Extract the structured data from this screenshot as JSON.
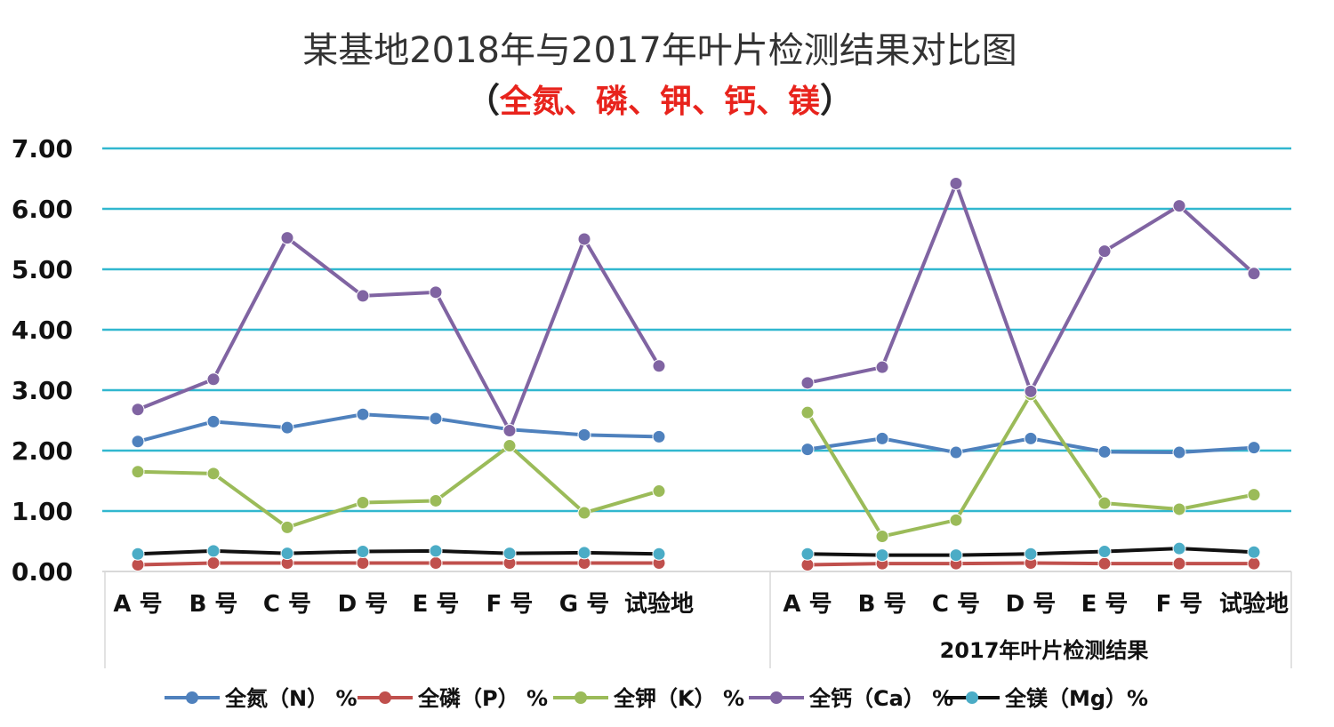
{
  "chart_data": {
    "type": "line",
    "title": "某基地2018年与2017年叶片检测结果对比图",
    "subtitle": {
      "open": "（",
      "text": "全氮、磷、钾、钙、镁",
      "close": "）"
    },
    "xlabel": "",
    "ylabel": "",
    "ylim": [
      0,
      7
    ],
    "yticks": [
      "0.00",
      "1.00",
      "2.00",
      "3.00",
      "4.00",
      "5.00",
      "6.00",
      "7.00"
    ],
    "grid": true,
    "legend_position": "bottom",
    "groups": [
      {
        "label": "",
        "categories": [
          "A 号",
          "B 号",
          "C 号",
          "D 号",
          "E 号",
          "F 号",
          "G 号",
          "试验地"
        ]
      },
      {
        "label": "2017年叶片检测结果",
        "categories": [
          "A 号",
          "B 号",
          "C 号",
          "D 号",
          "E 号",
          "F 号",
          "试验地"
        ]
      }
    ],
    "series": [
      {
        "name": "全氮（N）%",
        "color": "#4f81bd",
        "line_color": "#4f81bd",
        "values": [
          [
            2.15,
            2.48,
            2.38,
            2.6,
            2.53,
            2.35,
            2.26,
            2.23
          ],
          [
            2.02,
            2.2,
            1.97,
            2.2,
            1.98,
            1.97,
            2.05
          ]
        ]
      },
      {
        "name": "全磷（P）%",
        "color": "#c0504d",
        "line_color": "#c0504d",
        "values": [
          [
            0.11,
            0.14,
            0.14,
            0.14,
            0.14,
            0.14,
            0.14,
            0.14
          ],
          [
            0.11,
            0.13,
            0.13,
            0.14,
            0.13,
            0.13,
            0.13
          ]
        ]
      },
      {
        "name": "全钾（K）%",
        "color": "#9bbb59",
        "line_color": "#9bbb59",
        "values": [
          [
            1.65,
            1.62,
            0.73,
            1.14,
            1.17,
            2.08,
            0.97,
            1.33
          ],
          [
            2.63,
            0.58,
            0.85,
            2.93,
            1.13,
            1.03,
            1.27
          ]
        ]
      },
      {
        "name": "全钙（Ca）%",
        "color": "#8064a2",
        "line_color": "#8064a2",
        "values": [
          [
            2.68,
            3.18,
            5.52,
            4.56,
            4.62,
            2.33,
            5.5,
            3.4
          ],
          [
            3.12,
            3.38,
            6.42,
            2.98,
            5.3,
            6.05,
            4.93
          ]
        ]
      },
      {
        "name": "全镁（Mg）%",
        "color": "#4bacc6",
        "line_color": "#111111",
        "values": [
          [
            0.29,
            0.34,
            0.3,
            0.33,
            0.34,
            0.3,
            0.31,
            0.29
          ],
          [
            0.29,
            0.27,
            0.27,
            0.29,
            0.33,
            0.38,
            0.32
          ]
        ]
      }
    ],
    "legend": [
      {
        "name": "全氮（N） %",
        "color": "#4f81bd",
        "line_color": "#4f81bd"
      },
      {
        "name": "全磷（P） %",
        "color": "#c0504d",
        "line_color": "#c0504d"
      },
      {
        "name": "全钾（K） %",
        "color": "#9bbb59",
        "line_color": "#9bbb59"
      },
      {
        "name": "全钙（Ca） %",
        "color": "#8064a2",
        "line_color": "#8064a2"
      },
      {
        "name": "全镁（Mg）%",
        "color": "#4bacc6",
        "line_color": "#111111"
      }
    ],
    "gridline_color": "#31b7cf",
    "axis_color": "#d9d9d9"
  }
}
